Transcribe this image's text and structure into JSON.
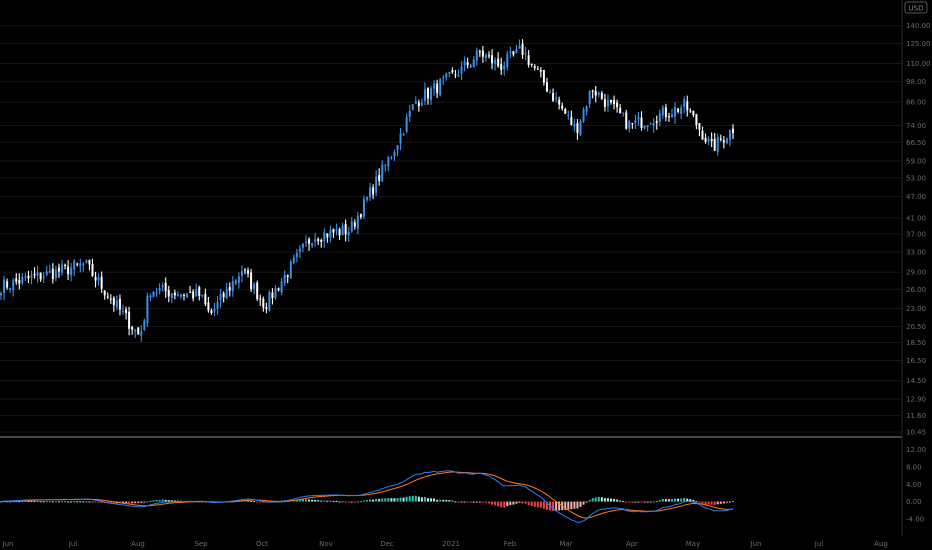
{
  "currency_badge": "USD",
  "colors": {
    "background": "#000000",
    "up": "#3d8fe6",
    "down": "#ffffff",
    "hist_up": "#2ec4b6",
    "hist_up_light": "#b5f0ea",
    "hist_down": "#ef4444",
    "hist_down_light": "#f6b3b3",
    "macd_line": "#2f7df0",
    "signal_line": "#ff7a1a",
    "axis_text": "#6b6b6b",
    "grid": "#161616"
  },
  "chart_data": [
    {
      "type": "ohlc",
      "scale": "log",
      "x_labels": [
        "Jun",
        "Jul",
        "Aug",
        "Sep",
        "Oct",
        "Nov",
        "Dec",
        "2021",
        "Feb",
        "Mar",
        "Apr",
        "May",
        "Jun",
        "Jul",
        "Aug"
      ],
      "y_ticks": [
        "140.00",
        "125.00",
        "110.00",
        "98.00",
        "86.00",
        "74.00",
        "66.50",
        "59.00",
        "53.00",
        "47.00",
        "41.00",
        "37.00",
        "33.00",
        "29.00",
        "26.00",
        "23.00",
        "20.50",
        "18.50",
        "16.50",
        "14.50",
        "12.90",
        "11.60",
        "10.45"
      ],
      "y_tick_values": [
        140,
        125,
        110,
        98,
        86,
        74,
        66.5,
        59,
        53,
        47,
        41,
        37,
        33,
        29,
        26,
        23,
        20.5,
        18.5,
        16.5,
        14.5,
        12.9,
        11.6,
        10.45
      ],
      "ylim": [
        10.45,
        165
      ],
      "approx_close_path": [
        {
          "month": "Jun",
          "close": 26.5
        },
        {
          "month": "Jul",
          "close": 30.5
        },
        {
          "month": "Aug",
          "close": 19.2
        },
        {
          "month": "Aug (mid)",
          "close": 26.0
        },
        {
          "month": "Sep",
          "close": 25.0
        },
        {
          "month": "Sep (late)",
          "close": 22.0
        },
        {
          "month": "Oct",
          "close": 29.5
        },
        {
          "month": "Oct (late)",
          "close": 23.5
        },
        {
          "month": "Nov",
          "close": 36.5
        },
        {
          "month": "Nov (late)",
          "close": 38.0
        },
        {
          "month": "Dec",
          "close": 62.0
        },
        {
          "month": "Dec (late)",
          "close": 86.0
        },
        {
          "month": "2021",
          "close": 105.0
        },
        {
          "month": "Jan (mid)",
          "close": 118.0
        },
        {
          "month": "Feb",
          "close": 108.0
        },
        {
          "month": "Feb (mid)",
          "close": 120.0
        },
        {
          "month": "Mar",
          "close": 72.0
        },
        {
          "month": "Mar (mid)",
          "close": 94.0
        },
        {
          "month": "Apr",
          "close": 74.0
        },
        {
          "month": "Apr (late)",
          "close": 84.0
        },
        {
          "month": "May",
          "close": 64.0
        },
        {
          "month": "May (late)",
          "close": 74.0
        }
      ]
    },
    {
      "type": "macd",
      "y_ticks": [
        "12.00",
        "8.00",
        "4.00",
        "0.00",
        "-4.00"
      ],
      "y_tick_values": [
        12,
        8,
        4,
        0,
        -4
      ],
      "ylim": [
        -7.5,
        14
      ]
    }
  ]
}
